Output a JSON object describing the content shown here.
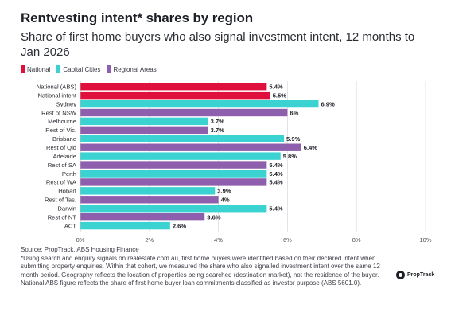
{
  "header": {
    "title": "Rentvesting intent* shares by region",
    "subtitle": "Share of first home buyers who also signal investment intent, 12 months to Jan 2026"
  },
  "legend": [
    {
      "label": "National",
      "color": "#e0103c"
    },
    {
      "label": "Capital Cities",
      "color": "#3ad3d1"
    },
    {
      "label": "Regional Areas",
      "color": "#8e5fac"
    }
  ],
  "chart_data": {
    "type": "bar",
    "orientation": "horizontal",
    "categories": [
      "National (ABS)",
      "National intent",
      "Sydney",
      "Rest of NSW",
      "Melbourne",
      "Rest of Vic.",
      "Brisbane",
      "Rest of Qld",
      "Adelaide",
      "Rest of SA",
      "Perth",
      "Rest of WA",
      "Hobart",
      "Rest of Tas.",
      "Darwin",
      "Rest of NT",
      "ACT"
    ],
    "values": [
      5.4,
      5.5,
      6.9,
      6.0,
      3.7,
      3.7,
      5.9,
      6.4,
      5.8,
      5.4,
      5.4,
      5.4,
      3.9,
      4.0,
      5.4,
      3.6,
      2.6
    ],
    "value_labels": [
      "5.4%",
      "5.5%",
      "6.9%",
      "6%",
      "3.7%",
      "3.7%",
      "5.9%",
      "6.4%",
      "5.8%",
      "5.4%",
      "5.4%",
      "5.4%",
      "3.9%",
      "4%",
      "5.4%",
      "3.6%",
      "2.6%"
    ],
    "groups": [
      "National",
      "National",
      "Capital Cities",
      "Regional Areas",
      "Capital Cities",
      "Regional Areas",
      "Capital Cities",
      "Regional Areas",
      "Capital Cities",
      "Regional Areas",
      "Capital Cities",
      "Regional Areas",
      "Capital Cities",
      "Regional Areas",
      "Capital Cities",
      "Regional Areas",
      "Capital Cities"
    ],
    "xlim": [
      0,
      10
    ],
    "xticks": [
      "0%",
      "2%",
      "4%",
      "6%",
      "8%",
      "10%"
    ],
    "grid": "vertical",
    "legend_position": "top-left"
  },
  "footer": {
    "source": "Source: PropTrack, ABS Housing Finance",
    "note": "*Using search and enquiry signals on realestate.com.au, first home buyers were identified based on their declared intent when submitting property enquiries. Within that cohort, we measured the share who also signalled investment intent over the same 12 month period. Geography reflects the location of properties being searched (destination market), not the residence of the buyer. National ABS figure reflects the share of first home buyer loan commitments classified as investor purpose (ABS 5601.0).",
    "logo_text": "PropTrack"
  }
}
